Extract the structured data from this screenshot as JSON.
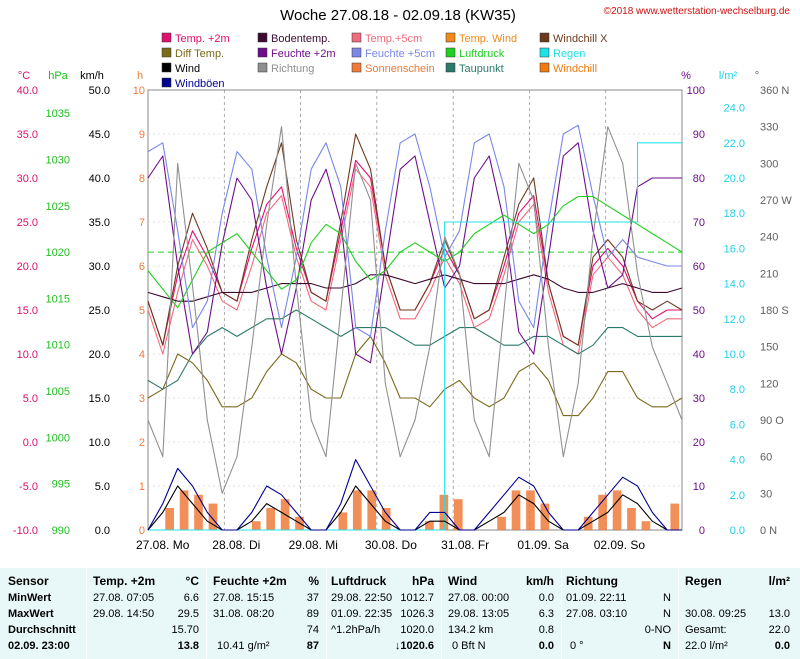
{
  "header": {
    "title": "Woche 27.08.18 - 02.09.18 (KW35)",
    "copyright": "©2018 www.wetterstation-wechselburg.de"
  },
  "legend": [
    {
      "label": "Temp. +2m",
      "color": "#e0106e"
    },
    {
      "label": "Bodentemp.",
      "color": "#3c0a32"
    },
    {
      "label": "Temp.+5cm",
      "color": "#f06a7e"
    },
    {
      "label": "Temp. Wind",
      "color": "#f08a1a"
    },
    {
      "label": "Windchill X",
      "color": "#6e3a1e"
    },
    {
      "label": "Diff Temp.",
      "color": "#7a6a1a"
    },
    {
      "label": "Feuchte +2m",
      "color": "#6e0e8a"
    },
    {
      "label": "Feuchte +5cm",
      "color": "#7a86e8"
    },
    {
      "label": "Luftdruck",
      "color": "#20d020"
    },
    {
      "label": "Regen",
      "color": "#20e0e8"
    },
    {
      "label": "Wind",
      "color": "#000000"
    },
    {
      "label": "Richtung",
      "color": "#909090"
    },
    {
      "label": "Sonnenschein",
      "color": "#f07a3a"
    },
    {
      "label": "Taupunkt",
      "color": "#2a7a6a"
    },
    {
      "label": "Windchill",
      "color": "#f07a10"
    },
    {
      "label": "Windböen",
      "color": "#000090"
    }
  ],
  "chart_data": {
    "type": "line",
    "x_labels": [
      "27.08. Mo",
      "28.08. Di",
      "29.08. Mi",
      "30.08. Do",
      "31.08. Fr",
      "01.09. Sa",
      "02.09. So"
    ],
    "axes": {
      "temp_c": {
        "unit": "°C",
        "ticks": [
          "40.0",
          "35.0",
          "30.0",
          "25.0",
          "20.0",
          "15.0",
          "10.0",
          "5.0",
          "0.0",
          "-5.0",
          "-10.0"
        ],
        "range": [
          -10,
          40
        ],
        "color": "#e0106e"
      },
      "pressure_hpa": {
        "unit": "hPa",
        "ticks": [
          "1035",
          "1030",
          "1025",
          "1020",
          "1015",
          "1010",
          "1005",
          "1000",
          "995",
          "990"
        ],
        "range": [
          990,
          1037.5
        ],
        "color": "#20c020"
      },
      "wind_kmh": {
        "unit": "km/h",
        "ticks": [
          "50.0",
          "45.0",
          "40.0",
          "35.0",
          "30.0",
          "25.0",
          "20.0",
          "15.0",
          "10.0",
          "5.0",
          "0.0"
        ],
        "range": [
          0,
          50
        ],
        "color": "#000000"
      },
      "sun_h": {
        "unit": "h",
        "ticks": [
          "10",
          "9",
          "8",
          "7",
          "6",
          "5",
          "4",
          "3",
          "2",
          "1",
          "0"
        ],
        "range": [
          0,
          10
        ],
        "color": "#f07a3a"
      },
      "humidity_pct": {
        "unit": "%",
        "ticks": [
          "100",
          "90",
          "80",
          "70",
          "60",
          "50",
          "40",
          "30",
          "20",
          "10",
          "0"
        ],
        "range": [
          0,
          100
        ],
        "color": "#6e0e8a"
      },
      "rain_lm2": {
        "unit": "l/m²",
        "ticks": [
          "24.0",
          "22.0",
          "20.0",
          "18.0",
          "16.0",
          "14.0",
          "12.0",
          "10.0",
          "8.0",
          "6.0",
          "4.0",
          "2.0",
          "0.0"
        ],
        "range": [
          0,
          25
        ],
        "color": "#20d0e8"
      },
      "direction_deg": {
        "unit": "°",
        "ticks": [
          "360 N",
          "330",
          "300",
          "270 W",
          "240",
          "210",
          "180 S",
          "150",
          "120",
          "90 O",
          "60",
          "30",
          "0 N"
        ],
        "range": [
          0,
          360
        ],
        "color": "#606060"
      }
    },
    "series": [
      {
        "name": "Temp. +2m",
        "color": "#e0106e",
        "axis": "temp_c",
        "values": [
          16,
          11,
          19,
          24,
          21,
          17,
          16,
          22,
          27,
          29,
          22,
          17,
          16,
          24,
          32,
          30,
          20,
          15,
          15,
          18,
          22,
          19,
          14,
          15,
          20,
          26,
          28,
          18,
          12,
          11,
          20,
          22,
          20,
          16,
          14,
          15,
          15
        ]
      },
      {
        "name": "Temp.+5cm",
        "color": "#f06a7e",
        "axis": "temp_c",
        "values": [
          15,
          10,
          17,
          23,
          20,
          16,
          15,
          20,
          26,
          28,
          21,
          16,
          15,
          23,
          31,
          29,
          19,
          14,
          14,
          17,
          21,
          18,
          13,
          14,
          19,
          25,
          27,
          17,
          11,
          10,
          19,
          21,
          19,
          15,
          13,
          14,
          14
        ]
      },
      {
        "name": "Windchill X",
        "color": "#6e3a1e",
        "axis": "temp_c",
        "values": [
          16,
          11,
          20,
          26,
          22,
          17,
          16,
          23,
          29,
          34,
          23,
          17,
          16,
          25,
          35,
          31,
          20,
          15,
          15,
          18,
          23,
          19,
          14,
          15,
          21,
          27,
          30,
          18,
          12,
          11,
          21,
          23,
          21,
          16,
          15,
          16,
          15
        ]
      },
      {
        "name": "Bodentemp.",
        "color": "#3c0a32",
        "axis": "temp_c",
        "values": [
          17,
          16.5,
          16,
          16,
          16.5,
          17,
          17,
          17,
          17.5,
          18,
          18,
          18,
          17.5,
          17.5,
          18,
          19,
          19,
          18.5,
          18,
          18.5,
          19,
          18.5,
          18,
          18,
          18,
          18.5,
          19,
          18.5,
          17.5,
          17,
          17,
          17.5,
          18,
          17.5,
          17,
          17,
          17.5
        ]
      },
      {
        "name": "Taupunkt",
        "color": "#2a7a6a",
        "axis": "temp_c",
        "values": [
          7,
          6,
          7,
          10,
          12,
          13,
          12,
          13,
          14,
          14,
          15,
          14,
          13,
          12,
          13,
          13,
          13,
          12,
          11,
          11,
          12,
          13,
          13,
          12,
          11,
          11,
          12,
          12,
          11,
          10,
          11,
          13,
          13,
          12,
          12,
          12,
          12
        ]
      },
      {
        "name": "Diff Temp.",
        "color": "#7a6a1a",
        "axis": "temp_c",
        "values": [
          5,
          6,
          10,
          9,
          7,
          4,
          4,
          5,
          8,
          10,
          9,
          6,
          5,
          5,
          10,
          12,
          9,
          5,
          5,
          4,
          6,
          7,
          5,
          4,
          5,
          8,
          9,
          7,
          3,
          3,
          5,
          8,
          8,
          5,
          4,
          4,
          5
        ]
      },
      {
        "name": "Feuchte +2m",
        "color": "#6e0e8a",
        "axis": "humidity_pct",
        "values": [
          80,
          85,
          60,
          40,
          45,
          65,
          80,
          75,
          55,
          40,
          55,
          75,
          82,
          70,
          40,
          38,
          60,
          82,
          85,
          70,
          55,
          60,
          80,
          85,
          70,
          45,
          40,
          62,
          85,
          88,
          68,
          55,
          58,
          78,
          80,
          80,
          80
        ]
      },
      {
        "name": "Feuchte +5cm",
        "color": "#7a86e8",
        "axis": "humidity_pct",
        "values": [
          86,
          88,
          68,
          46,
          52,
          72,
          86,
          82,
          62,
          46,
          62,
          82,
          88,
          78,
          46,
          44,
          68,
          88,
          90,
          78,
          62,
          68,
          88,
          90,
          78,
          52,
          46,
          70,
          90,
          92,
          76,
          62,
          66,
          62,
          61,
          60,
          60
        ]
      },
      {
        "name": "Luftdruck",
        "color": "#20d020",
        "axis": "pressure_hpa",
        "values": [
          1018,
          1016,
          1014,
          1017,
          1020,
          1021,
          1022,
          1020,
          1018,
          1016,
          1017,
          1021,
          1023,
          1022,
          1019,
          1017,
          1018,
          1020,
          1021,
          1020,
          1019,
          1020,
          1022,
          1023,
          1024,
          1023,
          1022,
          1023,
          1025,
          1026,
          1026,
          1025,
          1024,
          1023,
          1022,
          1021,
          1020
        ]
      },
      {
        "name": "Regen",
        "color": "#20e0e8",
        "axis": "rain_lm2",
        "values": [
          0,
          0,
          0,
          0,
          0,
          0,
          0,
          0,
          0,
          0,
          0,
          0,
          0,
          0,
          0,
          0,
          0,
          0,
          0,
          0,
          17.5,
          17.5,
          17.5,
          17.5,
          17.5,
          17.5,
          17.5,
          17.5,
          17.5,
          17.5,
          17.5,
          17.5,
          17.5,
          22,
          22,
          22,
          22
        ]
      },
      {
        "name": "Wind",
        "color": "#000000",
        "axis": "wind_kmh",
        "values": [
          0,
          2,
          5,
          3,
          1,
          0,
          0,
          1,
          3,
          2,
          1,
          0,
          0,
          2,
          5,
          3,
          1,
          0,
          0,
          1,
          1,
          0,
          0,
          1,
          2,
          4,
          3,
          1,
          0,
          0,
          1,
          2,
          4,
          3,
          1,
          0,
          0
        ]
      },
      {
        "name": "Windböen",
        "color": "#000090",
        "axis": "wind_kmh",
        "values": [
          0,
          3,
          7,
          5,
          2,
          0,
          0,
          2,
          5,
          4,
          2,
          0,
          0,
          3,
          8,
          5,
          2,
          0,
          0,
          2,
          2,
          0,
          0,
          2,
          4,
          6,
          5,
          2,
          0,
          0,
          2,
          4,
          6,
          5,
          2,
          0,
          0
        ]
      },
      {
        "name": "Richtung",
        "color": "#909090",
        "axis": "direction_deg",
        "values": [
          90,
          60,
          300,
          200,
          90,
          30,
          60,
          150,
          250,
          330,
          200,
          90,
          60,
          180,
          300,
          270,
          120,
          60,
          90,
          150,
          240,
          210,
          90,
          60,
          180,
          300,
          270,
          150,
          60,
          120,
          240,
          330,
          300,
          210,
          150,
          120,
          90
        ]
      }
    ],
    "bars": {
      "name": "Sonnenschein",
      "color": "#f07a3a",
      "axis": "sun_h",
      "values": [
        0,
        0.5,
        0.9,
        0.8,
        0.6,
        0,
        0,
        0.2,
        0.5,
        0.7,
        0.3,
        0,
        0,
        0.4,
        0.9,
        0.9,
        0.5,
        0,
        0,
        0.2,
        0.8,
        0.7,
        0,
        0,
        0.3,
        0.9,
        0.9,
        0.6,
        0,
        0,
        0.3,
        0.8,
        0.9,
        0.5,
        0.2,
        0,
        0.6
      ]
    },
    "hline": {
      "value": 1020,
      "axis": "pressure_hpa",
      "color": "#20d020",
      "style": "dashed"
    }
  },
  "table": {
    "row_labels": [
      "Sensor",
      "MinWert",
      "MaxWert",
      "Durchschnitt",
      "02.09. 23:00"
    ],
    "temp": {
      "header": "Temp. +2m",
      "unit": "°C",
      "min_time": "27.08. 07:05",
      "min_val": "6.6",
      "max_time": "29.08. 14:50",
      "max_val": "29.5",
      "avg": "15.70",
      "current": "13.8"
    },
    "humidity": {
      "header": "Feuchte +2m",
      "unit": "%",
      "min_time": "27.08. 15:15",
      "min_val": "37",
      "max_time": "31.08. 08:20",
      "max_val": "89",
      "avg": "74",
      "current_extra": "10.41 g/m²",
      "current": "87"
    },
    "pressure": {
      "header": "Luftdruck",
      "unit": "hPa",
      "min_time": "29.08. 22:50",
      "min_val": "1012.7",
      "max_time": "01.09. 22:35",
      "max_val": "1026.3",
      "avg_label": "^1.2hPa/h",
      "avg": "1020.0",
      "current": "↓1020.6"
    },
    "wind": {
      "header": "Wind",
      "unit": "km/h",
      "min_time": "27.08. 00:00",
      "min_val": "0.0",
      "max_time": "29.08. 13:05",
      "max_val": "6.3",
      "avg_label": "134.2 km",
      "avg": "0.8",
      "current_label": "0 Bft N",
      "current": "0.0"
    },
    "direction": {
      "header": "Richtung",
      "min_time": "01.09. 22:11",
      "min_val": "N",
      "max_time": "27.08. 03:10",
      "max_val": "N",
      "avg": "0-NO",
      "current_label": "0 °",
      "current": "N"
    },
    "rain": {
      "header": "Regen",
      "unit": "l/m²",
      "max_time": "30.08. 09:25",
      "max_val": "13.0",
      "avg_label": "Gesamt:",
      "avg": "22.0",
      "current_label": "22.0 l/m²",
      "current": "0.0"
    }
  }
}
